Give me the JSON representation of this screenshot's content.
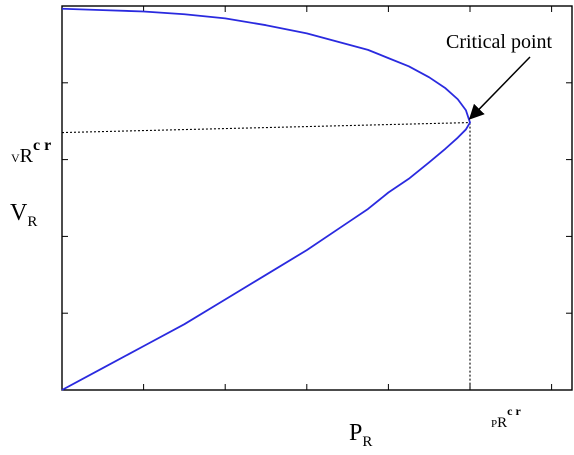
{
  "chart_data": {
    "type": "line",
    "title": "",
    "xlabel": {
      "main": "P",
      "sub": "R"
    },
    "ylabel": {
      "main": "V",
      "sub": "R"
    },
    "xlim": [
      0,
      1.25
    ],
    "ylim": [
      0,
      1.4
    ],
    "grid": false,
    "ticks_labeled": false,
    "critical_point": {
      "x": 1.0,
      "y": 0.975
    },
    "critical_x_label": {
      "pre": "P",
      "sub": "R",
      "sup": "c r"
    },
    "critical_y_label": {
      "pre": "V",
      "sub": "R",
      "sup": "c r"
    },
    "annotation": "Critical point",
    "series": [
      {
        "color": "#2a2adf",
        "x": [
          0,
          0.1,
          0.2,
          0.3,
          0.4,
          0.5,
          0.6,
          0.7,
          0.75,
          0.8,
          0.85,
          0.9,
          0.94,
          0.97,
          0.99,
          1.0,
          0.99,
          0.97,
          0.94,
          0.9,
          0.85,
          0.8,
          0.75,
          0.7,
          0.6,
          0.5,
          0.4,
          0.3,
          0.2,
          0.1,
          0
        ],
        "y": [
          0,
          0.08,
          0.16,
          0.24,
          0.33,
          0.42,
          0.51,
          0.61,
          0.66,
          0.72,
          0.77,
          0.83,
          0.88,
          0.92,
          0.95,
          0.975,
          1.02,
          1.06,
          1.1,
          1.14,
          1.18,
          1.21,
          1.24,
          1.26,
          1.3,
          1.33,
          1.355,
          1.37,
          1.38,
          1.385,
          1.39
        ]
      }
    ]
  }
}
